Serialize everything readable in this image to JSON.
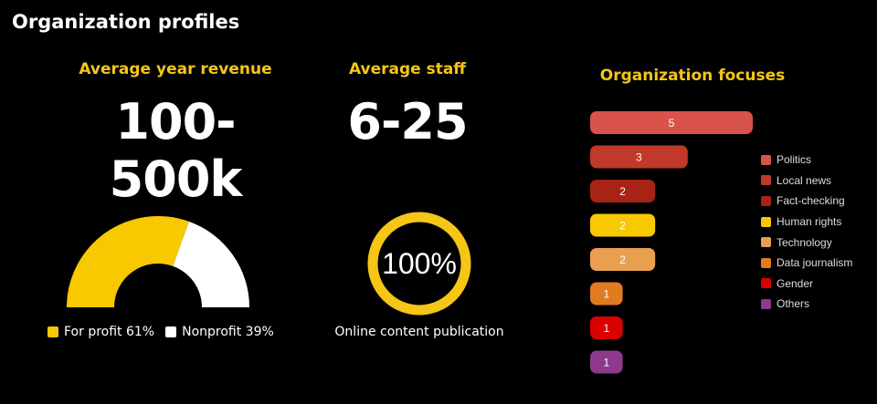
{
  "page": {
    "title": "Organization profiles"
  },
  "revenue": {
    "label": "Average year revenue",
    "value": "100-500k"
  },
  "staff": {
    "label": "Average staff",
    "value": "6-25"
  },
  "profit_split": {
    "segments": [
      {
        "label": "For profit 61%",
        "value": 61,
        "color": "#f8c800"
      },
      {
        "label": "Nonprofit 39%",
        "value": 39,
        "color": "#ffffff"
      }
    ]
  },
  "online": {
    "value_text": "100%",
    "fraction": 1.0,
    "caption": "Online content publication",
    "color": "#f5c518"
  },
  "chart_data": {
    "type": "bar",
    "title": "Organization focuses",
    "orientation": "horizontal",
    "categories": [
      "Politics",
      "Local news",
      "Fact-checking",
      "Human rights",
      "Technology",
      "Data journalism",
      "Gender",
      "Others"
    ],
    "values": [
      5,
      3,
      2,
      2,
      2,
      1,
      1,
      1
    ],
    "colors": [
      "#d9534a",
      "#c0392b",
      "#a82314",
      "#f8c800",
      "#e8a050",
      "#e07b20",
      "#d90000",
      "#8e3a8c"
    ],
    "legend_placement": "right"
  }
}
